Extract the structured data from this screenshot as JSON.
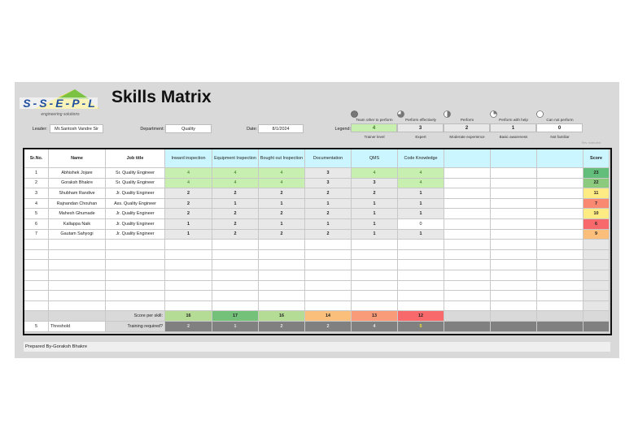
{
  "logo": {
    "text": "SSEPL",
    "tagline": "engineering solutions"
  },
  "title": "Skills Matrix",
  "fields": {
    "leader_label": "Leader:",
    "leader_value": "Mr.Santosh Vandre Sir",
    "department_label": "Department:",
    "department_value": "Quality",
    "date_label": "Date:",
    "date_value": "8/1/2024",
    "legend_label": "Legend:"
  },
  "legend": [
    {
      "caption": "Team other to perform",
      "value": "4",
      "level": "Trainer level",
      "color": "#c6efb0",
      "fill": 1.0
    },
    {
      "caption": "Perform effectively",
      "value": "3",
      "level": "Expert",
      "color": "#e8e8e8",
      "fill": 0.75
    },
    {
      "caption": "Perform",
      "value": "2",
      "level": "Moderate experience",
      "color": "#e8e8e8",
      "fill": 0.5
    },
    {
      "caption": "Perform with help",
      "value": "1",
      "level": "Basic awareness",
      "color": "#e8e8e8",
      "fill": 0.25
    },
    {
      "caption": "Can not perform",
      "value": "0",
      "level": "Not familiar",
      "color": "#ffffff",
      "fill": 0
    }
  ],
  "note": "Rev. notes text",
  "columns": [
    "Sr.No.",
    "Name",
    "Job title",
    "Inward inspection",
    "Equipment Inspection",
    "Bought out Inspection",
    "Documentation",
    "QMS",
    "Code Knowledge",
    "",
    "",
    "",
    "Score"
  ],
  "rows": [
    {
      "sr": "1",
      "name": "Abhishek Jojare",
      "job": "Sr. Quality Engineer",
      "skills": [
        "4",
        "4",
        "4",
        "3",
        "4",
        "4"
      ],
      "score": "23",
      "score_color": "#63be7b"
    },
    {
      "sr": "2",
      "name": "Goraksh Bhakre",
      "job": "Sr. Quality Engineer",
      "skills": [
        "4",
        "4",
        "4",
        "3",
        "3",
        "4"
      ],
      "score": "22",
      "score_color": "#8cca7d"
    },
    {
      "sr": "3",
      "name": "Shubham Randive",
      "job": "Jr. Quality Engineer",
      "skills": [
        "2",
        "2",
        "2",
        "2",
        "2",
        "1"
      ],
      "score": "11",
      "score_color": "#ffeb84"
    },
    {
      "sr": "4",
      "name": "Rajnandan Chouhan",
      "job": "Ass. Quality Engineer",
      "skills": [
        "2",
        "1",
        "1",
        "1",
        "1",
        "1"
      ],
      "score": "7",
      "score_color": "#f98970"
    },
    {
      "sr": "5",
      "name": "Mahesh Ghumade",
      "job": "Jr. Quality Engineer",
      "skills": [
        "2",
        "2",
        "2",
        "2",
        "1",
        "1"
      ],
      "score": "10",
      "score_color": "#ffeb84"
    },
    {
      "sr": "6",
      "name": "Kallappa Naik",
      "job": "Jr. Quality Engineer",
      "skills": [
        "1",
        "2",
        "1",
        "1",
        "1",
        "0"
      ],
      "score": "6",
      "score_color": "#f8696b"
    },
    {
      "sr": "7",
      "name": "Gautam Sahyogi",
      "job": "Jr. Quality Engineer",
      "skills": [
        "1",
        "2",
        "2",
        "2",
        "1",
        "1"
      ],
      "score": "9",
      "score_color": "#fcbf7b"
    }
  ],
  "score_per_skill": {
    "label": "Score per skill:",
    "values": [
      "16",
      "17",
      "16",
      "14",
      "13",
      "12"
    ],
    "colors": [
      "#b5dc95",
      "#74c27a",
      "#b5dc95",
      "#fbbf7c",
      "#f99a78",
      "#f8696b"
    ]
  },
  "threshold": {
    "value": "5",
    "label": "Threshold",
    "training_label": "Training required?",
    "values": [
      "2",
      "1",
      "2",
      "2",
      "4",
      "5"
    ]
  },
  "footer": "Prepared By-Goraksh Bhakre"
}
